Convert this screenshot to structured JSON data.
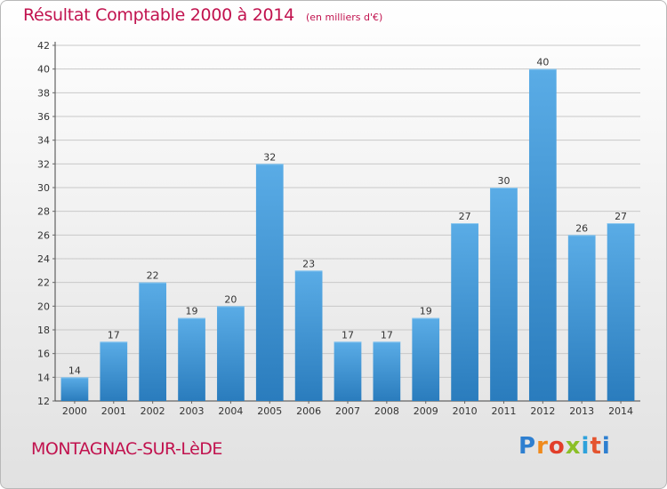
{
  "header": {
    "title": "Résultat Comptable 2000 à 2014",
    "unit": "(en milliers d'€)"
  },
  "footer": {
    "commune": "MONTAGNAC-SUR-LèDE",
    "logo": "Proxiti"
  },
  "colors": {
    "title": "#c1124e",
    "bar_light": "#5aace6",
    "bar_dark": "#2a7cbd",
    "grid": "#c8c8c8",
    "axis_text": "#333333"
  },
  "chart_data": {
    "type": "bar",
    "categories": [
      "2000",
      "2001",
      "2002",
      "2003",
      "2004",
      "2005",
      "2006",
      "2007",
      "2008",
      "2009",
      "2010",
      "2011",
      "2012",
      "2013",
      "2014"
    ],
    "values": [
      14,
      17,
      22,
      19,
      20,
      32,
      23,
      17,
      17,
      19,
      27,
      30,
      40,
      26,
      27
    ],
    "data_labels": [
      "14",
      "17",
      "22",
      "19",
      "20",
      "32",
      "23",
      "17",
      "17",
      "19",
      "27",
      "30",
      "40",
      "26",
      "27"
    ],
    "ylim": [
      12,
      42
    ],
    "yticks": [
      "12",
      "14",
      "16",
      "18",
      "20",
      "22",
      "24",
      "26",
      "28",
      "30",
      "32",
      "34",
      "36",
      "38",
      "40",
      "42"
    ],
    "grid": true,
    "xlabel": "",
    "ylabel": ""
  }
}
